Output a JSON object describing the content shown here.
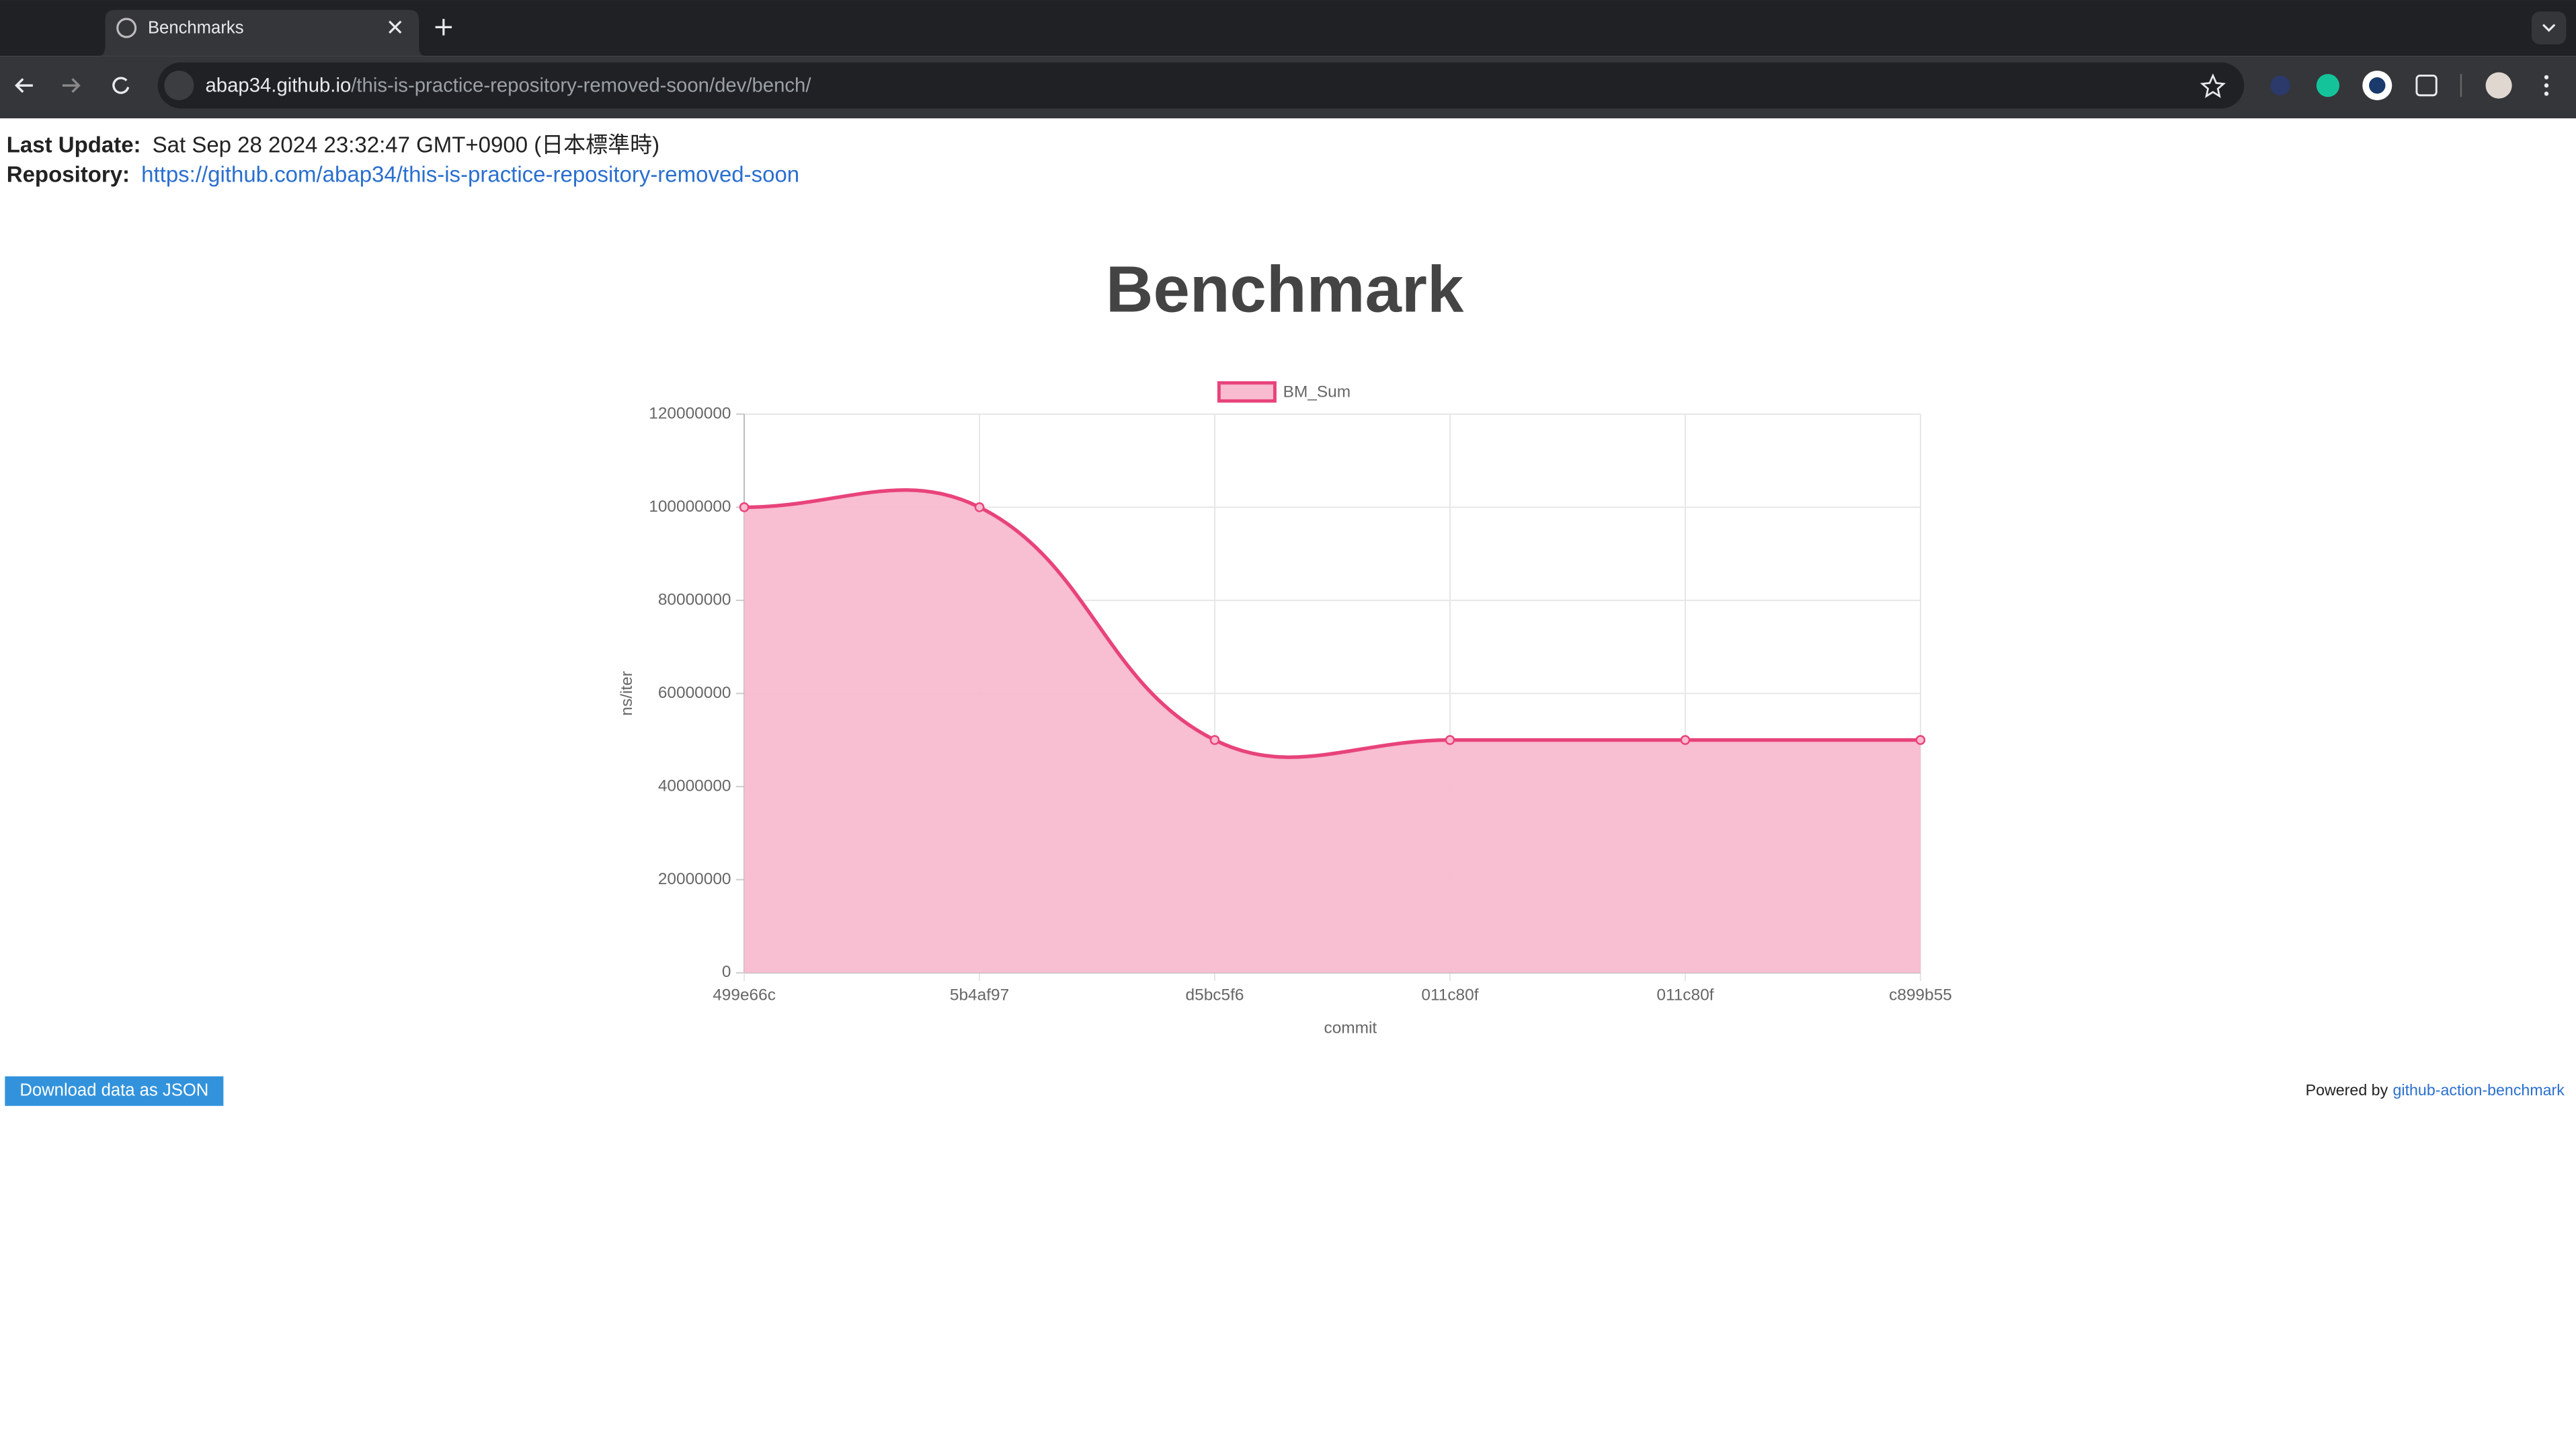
{
  "browser": {
    "tab_title": "Benchmarks",
    "url_host": "abap34.github.io",
    "url_path": "/this-is-practice-repository-removed-soon/dev/bench/"
  },
  "header": {
    "last_update_label": "Last Update:",
    "last_update": "Sat Sep 28 2024 23:32:47 GMT+0900 (日本標準時)",
    "repository_label": "Repository:",
    "repository_url": "https://github.com/abap34/this-is-practice-repository-removed-soon"
  },
  "chart_data": {
    "type": "line",
    "title": "Benchmark",
    "x_label": "commit",
    "y_label": "ns/iter",
    "categories": [
      "499e66c",
      "5b4af97",
      "d5bc5f6",
      "011c80f",
      "011c80f",
      "c899b55"
    ],
    "series": [
      {
        "name": "BM_Sum",
        "color": "#e8437a",
        "fill": "#f8bbcf",
        "values": [
          100000000,
          100000000,
          50000000,
          50000000,
          50000000,
          50000000
        ]
      }
    ],
    "ylim": [
      0,
      120000000
    ],
    "yticks": [
      0,
      20000000,
      40000000,
      60000000,
      80000000,
      100000000,
      120000000
    ],
    "grid": true,
    "legend": "top"
  },
  "footer": {
    "download_button": "Download data as JSON",
    "powered_by": "Powered by",
    "powered_by_link": "github-action-benchmark"
  }
}
